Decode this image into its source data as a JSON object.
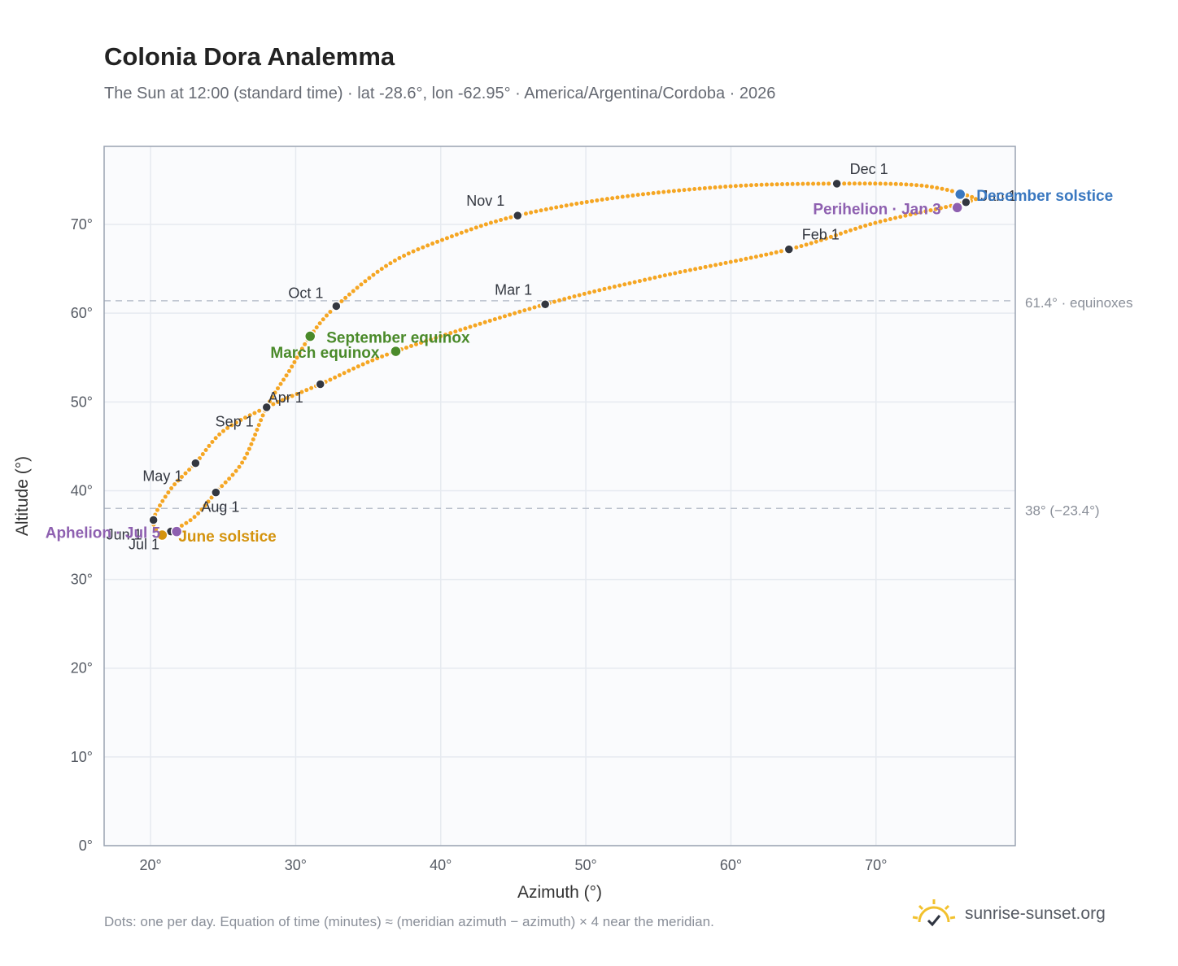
{
  "header": {
    "title": "Colonia Dora Analemma",
    "subtitle": "The Sun at 12:00 (standard time) · lat -28.6°, lon -62.95° · America/Argentina/Cordoba · 2026"
  },
  "footer": {
    "note": "Dots: one per day. Equation of time (minutes) ≈ (meridian azimuth − azimuth) × 4 near the meridian.",
    "brand": "sunrise-sunset.org"
  },
  "colors": {
    "curve": "#f5a623",
    "month_marker": "#333740",
    "equinox": "#4a8a2a",
    "june_solstice": "#d4930d",
    "december_solstice": "#3a78c0",
    "apsis": "#8e60b0",
    "plot_background": "#fafbfd",
    "grid": "#e6eaf0",
    "reference_line": "#b9c0cc"
  },
  "chart_data": {
    "type": "scatter",
    "xlabel": "Azimuth (°)",
    "ylabel": "Altitude (°)",
    "xlim": [
      16.8,
      79.6
    ],
    "ylim": [
      0,
      78.8
    ],
    "x_ticks": [
      20,
      30,
      40,
      50,
      60,
      70
    ],
    "y_ticks": [
      0,
      10,
      20,
      30,
      40,
      50,
      60,
      70
    ],
    "tick_suffix": "°",
    "grid": true,
    "reference_lines": [
      {
        "y": 61.4,
        "label": "61.4° · equinoxes"
      },
      {
        "y": 38,
        "label": "38° (−23.4°)"
      }
    ],
    "months": [
      {
        "label": "Jan 1",
        "x": 76.2,
        "y": 72.5
      },
      {
        "label": "Feb 1",
        "x": 64.0,
        "y": 67.2
      },
      {
        "label": "Mar 1",
        "x": 47.2,
        "y": 61.0
      },
      {
        "label": "Apr 1",
        "x": 28.0,
        "y": 49.4
      },
      {
        "label": "May 1",
        "x": 23.1,
        "y": 43.1
      },
      {
        "label": "Jun 1",
        "x": 20.2,
        "y": 36.7
      },
      {
        "label": "Jul 1",
        "x": 21.4,
        "y": 35.4
      },
      {
        "label": "Aug 1",
        "x": 24.5,
        "y": 39.8
      },
      {
        "label": "Sep 1",
        "x": 31.7,
        "y": 52.0
      },
      {
        "label": "Oct 1",
        "x": 32.8,
        "y": 60.8
      },
      {
        "label": "Nov 1",
        "x": 45.3,
        "y": 71.0
      },
      {
        "label": "Dec 1",
        "x": 67.3,
        "y": 74.6
      }
    ],
    "events": [
      {
        "label": "March equinox",
        "x": 36.9,
        "y": 55.7,
        "color": "#4a8a2a"
      },
      {
        "label": "September equinox",
        "x": 31.0,
        "y": 57.4,
        "color": "#4a8a2a"
      },
      {
        "label": "June solstice",
        "x": 20.8,
        "y": 35.0,
        "color": "#d4930d"
      },
      {
        "label": "December solstice",
        "x": 75.8,
        "y": 73.4,
        "color": "#3a78c0"
      },
      {
        "label": "Perihelion · Jan 3",
        "x": 75.6,
        "y": 71.9,
        "color": "#8e60b0"
      },
      {
        "label": "Aphelion · Jul 5",
        "x": 21.8,
        "y": 35.4,
        "color": "#8e60b0"
      }
    ],
    "daily_series": {
      "name": "",
      "points_per_day": 1,
      "path_nodes": [
        [
          76.2,
          72.5
        ],
        [
          70.0,
          70.2
        ],
        [
          64.0,
          67.2
        ],
        [
          55.0,
          64.1
        ],
        [
          47.2,
          61.0
        ],
        [
          36.9,
          55.7
        ],
        [
          31.7,
          52.0
        ],
        [
          28.0,
          49.4
        ],
        [
          25.0,
          46.7
        ],
        [
          23.1,
          43.1
        ],
        [
          21.4,
          40.2
        ],
        [
          20.2,
          36.7
        ],
        [
          20.8,
          35.0
        ],
        [
          21.4,
          35.4
        ],
        [
          23.0,
          37.0
        ],
        [
          24.5,
          39.8
        ],
        [
          26.4,
          43.4
        ],
        [
          28.0,
          49.4
        ],
        [
          29.6,
          53.6
        ],
        [
          31.0,
          57.4
        ],
        [
          32.8,
          60.8
        ],
        [
          36.5,
          65.6
        ],
        [
          40.5,
          68.5
        ],
        [
          45.3,
          71.0
        ],
        [
          52.0,
          73.0
        ],
        [
          60.0,
          74.3
        ],
        [
          67.3,
          74.6
        ],
        [
          73.0,
          74.4
        ],
        [
          76.4,
          73.2
        ],
        [
          76.2,
          72.5
        ]
      ]
    }
  }
}
